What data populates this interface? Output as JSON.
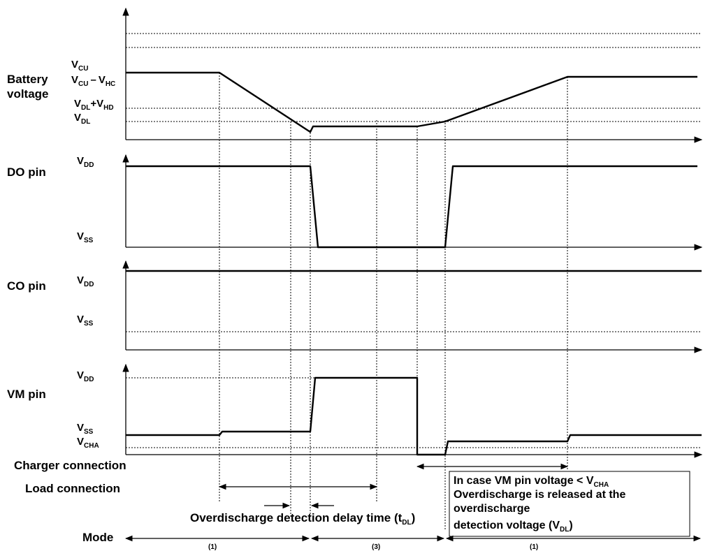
{
  "rows": {
    "battery": {
      "label": "Battery\nvoltage",
      "vcu": "V",
      "vcu_sub": "CU",
      "vcuhc_a": "V",
      "vcuhc_a_sub": "CU",
      "vcuhc_dash": "–",
      "vcuhc_b": "V",
      "vcuhc_b_sub": "HC",
      "vdlhd_a": "V",
      "vdlhd_a_sub": "DL",
      "vdlhd_plus": "+V",
      "vdlhd_b_sub": "HD",
      "vdl": "V",
      "vdl_sub": "DL"
    },
    "do": {
      "label": "DO pin",
      "vdd": "V",
      "vdd_sub": "DD",
      "vss": "V",
      "vss_sub": "SS"
    },
    "co": {
      "label": "CO pin",
      "vdd": "V",
      "vdd_sub": "DD",
      "vss": "V",
      "vss_sub": "SS"
    },
    "vm": {
      "label": "VM pin",
      "vdd": "V",
      "vdd_sub": "DD",
      "vss": "V",
      "vss_sub": "SS",
      "vcha": "V",
      "vcha_sub": "CHA"
    }
  },
  "charger_connection": "Charger connection",
  "load_connection": "Load connection",
  "delay": {
    "text": "Overdischarge detection delay time (t",
    "sub": "DL",
    "close": ")"
  },
  "note": {
    "line1": "In case VM pin voltage < V",
    "line1_sub": "CHA",
    "line2": "Overdischarge is released at the",
    "line3": "overdischarge",
    "line4": "detection voltage (V",
    "line4_sub": "DL",
    "line4_close": ")"
  },
  "mode": {
    "label": "Mode",
    "seg1": "(1)",
    "seg2": "(3)",
    "seg3": "(1)"
  }
}
